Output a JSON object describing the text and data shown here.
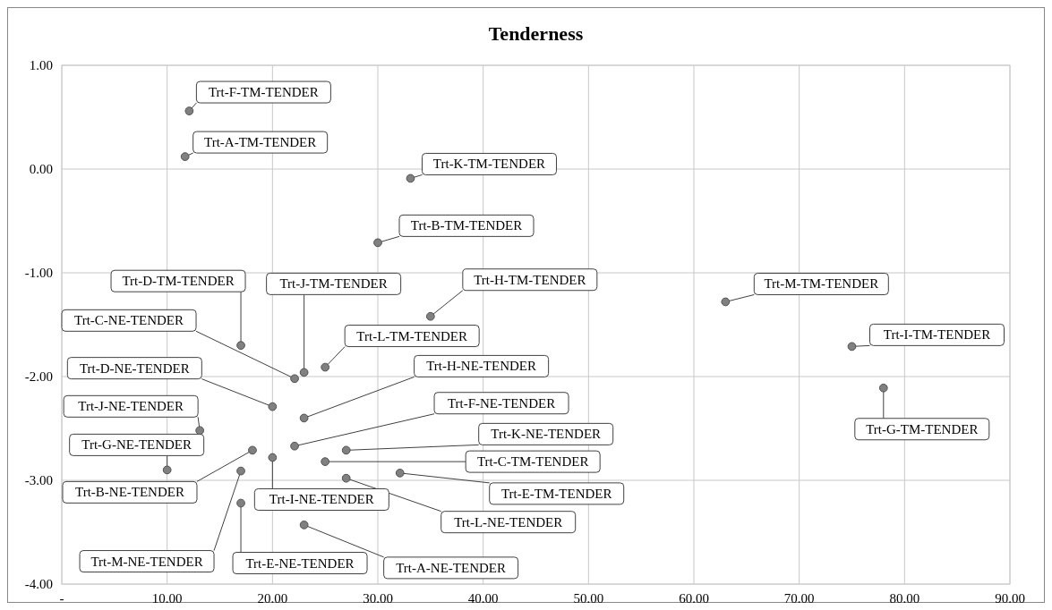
{
  "chart_data": {
    "type": "scatter",
    "title": "Tenderness",
    "marker": "circle",
    "grid": true,
    "xlim": [
      0,
      90
    ],
    "ylim": [
      -4,
      1
    ],
    "xticks": [
      {
        "value": 0,
        "label": "-"
      },
      {
        "value": 10,
        "label": "10.00"
      },
      {
        "value": 20,
        "label": "20.00"
      },
      {
        "value": 30,
        "label": "30.00"
      },
      {
        "value": 40,
        "label": "40.00"
      },
      {
        "value": 50,
        "label": "50.00"
      },
      {
        "value": 60,
        "label": "60.00"
      },
      {
        "value": 70,
        "label": "70.00"
      },
      {
        "value": 80,
        "label": "80.00"
      },
      {
        "value": 90,
        "label": "90.00"
      }
    ],
    "yticks": [
      {
        "value": 1,
        "label": "1.00"
      },
      {
        "value": 0,
        "label": "0.00"
      },
      {
        "value": -1,
        "label": "-1.00"
      },
      {
        "value": -2,
        "label": "-2.00"
      },
      {
        "value": -3,
        "label": "-3.00"
      },
      {
        "value": -4,
        "label": "-4.00"
      }
    ],
    "series": [
      {
        "color": "#808080",
        "x": [
          12.1,
          11.7,
          33.1,
          30.0,
          35.0,
          63.0,
          75.0,
          78.0,
          17.0,
          23.0,
          25.0,
          22.1,
          20.0,
          23.0,
          13.1,
          22.1,
          27.0,
          25.0,
          10.0,
          18.1,
          32.1,
          27.0,
          20.0,
          17.0,
          17.0,
          23.0
        ],
        "values": [
          0.56,
          0.12,
          -0.09,
          -0.71,
          -1.42,
          -1.28,
          -1.71,
          -2.11,
          -1.7,
          -1.96,
          -1.91,
          -2.02,
          -2.29,
          -2.4,
          -2.52,
          -2.67,
          -2.71,
          -2.82,
          -2.9,
          -2.71,
          -2.93,
          -2.98,
          -2.78,
          -2.91,
          -3.22,
          -3.43
        ]
      }
    ],
    "annotations": [
      {
        "text": "Trt-F-TM-TENDER",
        "x": 12.1,
        "y": 0.56
      },
      {
        "text": "Trt-A-TM-TENDER",
        "x": 11.7,
        "y": 0.12
      },
      {
        "text": "Trt-K-TM-TENDER",
        "x": 33.1,
        "y": -0.09
      },
      {
        "text": "Trt-B-TM-TENDER",
        "x": 30.0,
        "y": -0.71
      },
      {
        "text": "Trt-H-TM-TENDER",
        "x": 35.0,
        "y": -1.42
      },
      {
        "text": "Trt-M-TM-TENDER",
        "x": 63.0,
        "y": -1.28
      },
      {
        "text": "Trt-I-TM-TENDER",
        "x": 75.0,
        "y": -1.71
      },
      {
        "text": "Trt-G-TM-TENDER",
        "x": 78.0,
        "y": -2.11
      },
      {
        "text": "Trt-D-TM-TENDER",
        "x": 17.0,
        "y": -1.7
      },
      {
        "text": "Trt-J-TM-TENDER",
        "x": 23.0,
        "y": -1.96
      },
      {
        "text": "Trt-L-TM-TENDER",
        "x": 25.0,
        "y": -1.91
      },
      {
        "text": "Trt-C-NE-TENDER",
        "x": 22.1,
        "y": -2.02
      },
      {
        "text": "Trt-D-NE-TENDER",
        "x": 20.0,
        "y": -2.29
      },
      {
        "text": "Trt-H-NE-TENDER",
        "x": 23.0,
        "y": -2.4
      },
      {
        "text": "Trt-J-NE-TENDER",
        "x": 13.1,
        "y": -2.52
      },
      {
        "text": "Trt-F-NE-TENDER",
        "x": 22.1,
        "y": -2.67
      },
      {
        "text": "Trt-K-NE-TENDER",
        "x": 27.0,
        "y": -2.71
      },
      {
        "text": "Trt-C-TM-TENDER",
        "x": 25.0,
        "y": -2.82
      },
      {
        "text": "Trt-G-NE-TENDER",
        "x": 10.0,
        "y": -2.9
      },
      {
        "text": "Trt-B-NE-TENDER",
        "x": 18.1,
        "y": -2.71
      },
      {
        "text": "Trt-E-TM-TENDER",
        "x": 32.1,
        "y": -2.93
      },
      {
        "text": "Trt-L-NE-TENDER",
        "x": 27.0,
        "y": -2.98
      },
      {
        "text": "Trt-I-NE-TENDER",
        "x": 20.0,
        "y": -2.78
      },
      {
        "text": "Trt-M-NE-TENDER",
        "x": 17.0,
        "y": -2.91
      },
      {
        "text": "Trt-E-NE-TENDER",
        "x": 17.0,
        "y": -3.22
      },
      {
        "text": "Trt-A-NE-TENDER",
        "x": 23.0,
        "y": -3.43
      }
    ]
  }
}
